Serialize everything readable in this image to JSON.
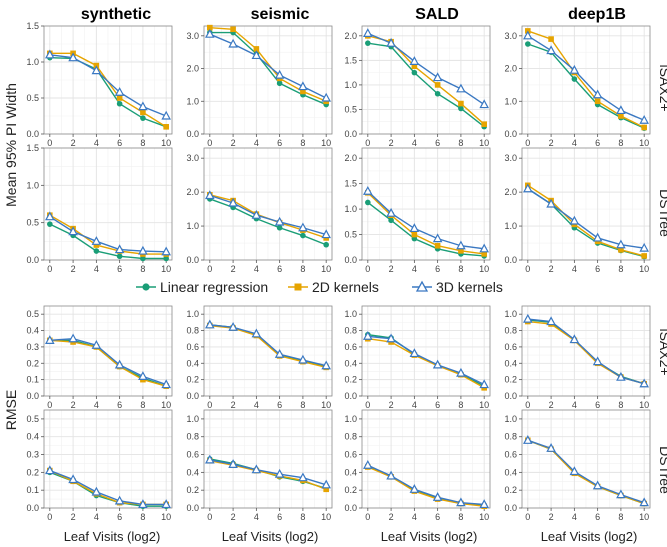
{
  "colors": {
    "linear": "#1a9e77",
    "kernel2d": "#e6a400",
    "kernel3d": "#3a78c2",
    "grid": "#e3e3e3",
    "panel_border": "#8a8a8a"
  },
  "column_titles": [
    "synthetic",
    "seismic",
    "SALD",
    "deep1B"
  ],
  "row_labels": [
    "iSAX2+",
    "DSTree",
    "iSAX2+",
    "DSTree"
  ],
  "legend": {
    "items": [
      {
        "label": "Linear regression",
        "marker": "circle",
        "color_key": "linear"
      },
      {
        "label": "2D kernels",
        "marker": "square",
        "color_key": "kernel2d"
      },
      {
        "label": "3D kernels",
        "marker": "triangle",
        "color_key": "kernel3d"
      }
    ]
  },
  "ylabels": {
    "top": "Mean 95% PI Width",
    "bottom": "RMSE"
  },
  "xlabel": "Leaf Visits (log2)",
  "chart_data": [
    {
      "type": "line",
      "group": "pi",
      "row": 0,
      "col": 0,
      "x": [
        0,
        2,
        4,
        6,
        8,
        10
      ],
      "ylim": [
        0,
        1.5
      ],
      "yticks": [
        0.0,
        0.5,
        1.0,
        1.5
      ],
      "series": [
        {
          "name": "Linear regression",
          "values": [
            1.06,
            1.05,
            0.9,
            0.42,
            0.22,
            0.1
          ]
        },
        {
          "name": "2D kernels",
          "values": [
            1.12,
            1.12,
            0.95,
            0.5,
            0.3,
            0.1
          ]
        },
        {
          "name": "3D kernels",
          "values": [
            1.1,
            1.06,
            0.88,
            0.58,
            0.38,
            0.25
          ]
        }
      ]
    },
    {
      "type": "line",
      "group": "pi",
      "row": 0,
      "col": 1,
      "x": [
        0,
        2,
        4,
        6,
        8,
        10
      ],
      "ylim": [
        0,
        3.3
      ],
      "yticks": [
        0.0,
        1.0,
        2.0,
        3.0
      ],
      "series": [
        {
          "name": "Linear regression",
          "values": [
            3.1,
            3.1,
            2.45,
            1.55,
            1.2,
            0.9
          ]
        },
        {
          "name": "2D kernels",
          "values": [
            3.25,
            3.2,
            2.6,
            1.7,
            1.3,
            1.0
          ]
        },
        {
          "name": "3D kernels",
          "values": [
            3.05,
            2.75,
            2.4,
            1.8,
            1.45,
            1.1
          ]
        }
      ]
    },
    {
      "type": "line",
      "group": "pi",
      "row": 0,
      "col": 2,
      "x": [
        0,
        2,
        4,
        6,
        8,
        10
      ],
      "ylim": [
        0,
        2.2
      ],
      "yticks": [
        0.0,
        0.5,
        1.0,
        1.5,
        2.0
      ],
      "series": [
        {
          "name": "Linear regression",
          "values": [
            1.85,
            1.78,
            1.25,
            0.82,
            0.52,
            0.15
          ]
        },
        {
          "name": "2D kernels",
          "values": [
            2.0,
            1.88,
            1.38,
            1.0,
            0.62,
            0.2
          ]
        },
        {
          "name": "3D kernels",
          "values": [
            2.05,
            1.85,
            1.48,
            1.15,
            0.92,
            0.6
          ]
        }
      ]
    },
    {
      "type": "line",
      "group": "pi",
      "row": 0,
      "col": 3,
      "x": [
        0,
        2,
        4,
        6,
        8,
        10
      ],
      "ylim": [
        0,
        3.3
      ],
      "yticks": [
        0.0,
        1.0,
        2.0,
        3.0
      ],
      "series": [
        {
          "name": "Linear regression",
          "values": [
            2.75,
            2.5,
            1.68,
            0.9,
            0.5,
            0.18
          ]
        },
        {
          "name": "2D kernels",
          "values": [
            3.15,
            2.9,
            1.88,
            1.0,
            0.55,
            0.2
          ]
        },
        {
          "name": "3D kernels",
          "values": [
            3.0,
            2.55,
            1.95,
            1.2,
            0.72,
            0.42
          ]
        }
      ]
    },
    {
      "type": "line",
      "group": "pi",
      "row": 1,
      "col": 0,
      "x": [
        0,
        2,
        4,
        6,
        8,
        10
      ],
      "ylim": [
        0,
        1.5
      ],
      "yticks": [
        0.0,
        0.5,
        1.0,
        1.5
      ],
      "series": [
        {
          "name": "Linear regression",
          "values": [
            0.48,
            0.33,
            0.12,
            0.05,
            0.02,
            0.02
          ]
        },
        {
          "name": "2D kernels",
          "values": [
            0.6,
            0.42,
            0.2,
            0.12,
            0.08,
            0.08
          ]
        },
        {
          "name": "3D kernels",
          "values": [
            0.58,
            0.38,
            0.25,
            0.14,
            0.12,
            0.11
          ]
        }
      ]
    },
    {
      "type": "line",
      "group": "pi",
      "row": 1,
      "col": 1,
      "x": [
        0,
        2,
        4,
        6,
        8,
        10
      ],
      "ylim": [
        0,
        3.3
      ],
      "yticks": [
        0.0,
        1.0,
        2.0,
        3.0
      ],
      "series": [
        {
          "name": "Linear regression",
          "values": [
            1.8,
            1.55,
            1.22,
            0.95,
            0.72,
            0.45
          ]
        },
        {
          "name": "2D kernels",
          "values": [
            1.92,
            1.75,
            1.35,
            1.1,
            0.88,
            0.65
          ]
        },
        {
          "name": "3D kernels",
          "values": [
            1.9,
            1.68,
            1.32,
            1.12,
            0.95,
            0.75
          ]
        }
      ]
    },
    {
      "type": "line",
      "group": "pi",
      "row": 1,
      "col": 2,
      "x": [
        0,
        2,
        4,
        6,
        8,
        10
      ],
      "ylim": [
        0,
        2.2
      ],
      "yticks": [
        0.0,
        0.5,
        1.0,
        1.5,
        2.0
      ],
      "series": [
        {
          "name": "Linear regression",
          "values": [
            1.13,
            0.78,
            0.42,
            0.22,
            0.12,
            0.08
          ]
        },
        {
          "name": "2D kernels",
          "values": [
            1.32,
            0.88,
            0.5,
            0.28,
            0.18,
            0.12
          ]
        },
        {
          "name": "3D kernels",
          "values": [
            1.35,
            0.92,
            0.62,
            0.42,
            0.28,
            0.22
          ]
        }
      ]
    },
    {
      "type": "line",
      "group": "pi",
      "row": 1,
      "col": 3,
      "x": [
        0,
        2,
        4,
        6,
        8,
        10
      ],
      "ylim": [
        0,
        3.3
      ],
      "yticks": [
        0.0,
        1.0,
        2.0,
        3.0
      ],
      "series": [
        {
          "name": "Linear regression",
          "values": [
            2.1,
            1.65,
            0.95,
            0.5,
            0.28,
            0.1
          ]
        },
        {
          "name": "2D kernels",
          "values": [
            2.2,
            1.75,
            1.05,
            0.55,
            0.3,
            0.12
          ]
        },
        {
          "name": "3D kernels",
          "values": [
            2.1,
            1.65,
            1.15,
            0.65,
            0.45,
            0.35
          ]
        }
      ]
    },
    {
      "type": "line",
      "group": "rmse",
      "row": 2,
      "col": 0,
      "x": [
        0,
        2,
        4,
        6,
        8,
        10
      ],
      "ylim": [
        0,
        0.55
      ],
      "yticks": [
        0.0,
        0.1,
        0.2,
        0.3,
        0.4,
        0.5
      ],
      "series": [
        {
          "name": "Linear regression",
          "values": [
            0.34,
            0.34,
            0.3,
            0.18,
            0.11,
            0.06
          ]
        },
        {
          "name": "2D kernels",
          "values": [
            0.34,
            0.33,
            0.3,
            0.18,
            0.1,
            0.06
          ]
        },
        {
          "name": "3D kernels",
          "values": [
            0.34,
            0.35,
            0.31,
            0.19,
            0.12,
            0.07
          ]
        }
      ]
    },
    {
      "type": "line",
      "group": "rmse",
      "row": 2,
      "col": 1,
      "x": [
        0,
        2,
        4,
        6,
        8,
        10
      ],
      "ylim": [
        0,
        1.1
      ],
      "yticks": [
        0.0,
        0.2,
        0.4,
        0.6,
        0.8,
        1.0
      ],
      "series": [
        {
          "name": "Linear regression",
          "values": [
            0.87,
            0.84,
            0.75,
            0.5,
            0.43,
            0.36
          ]
        },
        {
          "name": "2D kernels",
          "values": [
            0.86,
            0.83,
            0.74,
            0.49,
            0.42,
            0.35
          ]
        },
        {
          "name": "3D kernels",
          "values": [
            0.87,
            0.84,
            0.76,
            0.51,
            0.44,
            0.37
          ]
        }
      ]
    },
    {
      "type": "line",
      "group": "rmse",
      "row": 2,
      "col": 2,
      "x": [
        0,
        2,
        4,
        6,
        8,
        10
      ],
      "ylim": [
        0,
        1.1
      ],
      "yticks": [
        0.0,
        0.2,
        0.4,
        0.6,
        0.8,
        1.0
      ],
      "series": [
        {
          "name": "Linear regression",
          "values": [
            0.75,
            0.71,
            0.51,
            0.37,
            0.27,
            0.12
          ]
        },
        {
          "name": "2D kernels",
          "values": [
            0.7,
            0.66,
            0.5,
            0.37,
            0.26,
            0.1
          ]
        },
        {
          "name": "3D kernels",
          "values": [
            0.73,
            0.7,
            0.52,
            0.38,
            0.28,
            0.14
          ]
        }
      ]
    },
    {
      "type": "line",
      "group": "rmse",
      "row": 2,
      "col": 3,
      "x": [
        0,
        2,
        4,
        6,
        8,
        10
      ],
      "ylim": [
        0,
        1.1
      ],
      "yticks": [
        0.0,
        0.2,
        0.4,
        0.6,
        0.8,
        1.0
      ],
      "series": [
        {
          "name": "Linear regression",
          "values": [
            0.93,
            0.9,
            0.68,
            0.41,
            0.24,
            0.15
          ]
        },
        {
          "name": "2D kernels",
          "values": [
            0.91,
            0.88,
            0.68,
            0.4,
            0.23,
            0.15
          ]
        },
        {
          "name": "3D kernels",
          "values": [
            0.94,
            0.91,
            0.69,
            0.42,
            0.23,
            0.15
          ]
        }
      ]
    },
    {
      "type": "line",
      "group": "rmse",
      "row": 3,
      "col": 0,
      "x": [
        0,
        2,
        4,
        6,
        8,
        10
      ],
      "ylim": [
        0,
        0.55
      ],
      "yticks": [
        0.0,
        0.1,
        0.2,
        0.3,
        0.4,
        0.5
      ],
      "series": [
        {
          "name": "Linear regression",
          "values": [
            0.2,
            0.15,
            0.07,
            0.03,
            0.01,
            0.01
          ]
        },
        {
          "name": "2D kernels",
          "values": [
            0.21,
            0.15,
            0.08,
            0.03,
            0.02,
            0.02
          ]
        },
        {
          "name": "3D kernels",
          "values": [
            0.21,
            0.16,
            0.09,
            0.04,
            0.02,
            0.02
          ]
        }
      ]
    },
    {
      "type": "line",
      "group": "rmse",
      "row": 3,
      "col": 1,
      "x": [
        0,
        2,
        4,
        6,
        8,
        10
      ],
      "ylim": [
        0,
        1.1
      ],
      "yticks": [
        0.0,
        0.2,
        0.4,
        0.6,
        0.8,
        1.0
      ],
      "series": [
        {
          "name": "Linear regression",
          "values": [
            0.55,
            0.5,
            0.43,
            0.35,
            0.3,
            0.22
          ]
        },
        {
          "name": "2D kernels",
          "values": [
            0.53,
            0.48,
            0.42,
            0.36,
            0.31,
            0.21
          ]
        },
        {
          "name": "3D kernels",
          "values": [
            0.54,
            0.49,
            0.43,
            0.38,
            0.34,
            0.26
          ]
        }
      ]
    },
    {
      "type": "line",
      "group": "rmse",
      "row": 3,
      "col": 2,
      "x": [
        0,
        2,
        4,
        6,
        8,
        10
      ],
      "ylim": [
        0,
        1.1
      ],
      "yticks": [
        0.0,
        0.2,
        0.4,
        0.6,
        0.8,
        1.0
      ],
      "series": [
        {
          "name": "Linear regression",
          "values": [
            0.47,
            0.35,
            0.2,
            0.11,
            0.05,
            0.03
          ]
        },
        {
          "name": "2D kernels",
          "values": [
            0.46,
            0.35,
            0.19,
            0.1,
            0.05,
            0.02
          ]
        },
        {
          "name": "3D kernels",
          "values": [
            0.48,
            0.36,
            0.21,
            0.12,
            0.06,
            0.04
          ]
        }
      ]
    },
    {
      "type": "line",
      "group": "rmse",
      "row": 3,
      "col": 3,
      "x": [
        0,
        2,
        4,
        6,
        8,
        10
      ],
      "ylim": [
        0,
        1.1
      ],
      "yticks": [
        0.0,
        0.2,
        0.4,
        0.6,
        0.8,
        1.0
      ],
      "series": [
        {
          "name": "Linear regression",
          "values": [
            0.76,
            0.66,
            0.4,
            0.24,
            0.14,
            0.05
          ]
        },
        {
          "name": "2D kernels",
          "values": [
            0.76,
            0.66,
            0.39,
            0.24,
            0.14,
            0.05
          ]
        },
        {
          "name": "3D kernels",
          "values": [
            0.76,
            0.67,
            0.41,
            0.25,
            0.15,
            0.06
          ]
        }
      ]
    }
  ]
}
